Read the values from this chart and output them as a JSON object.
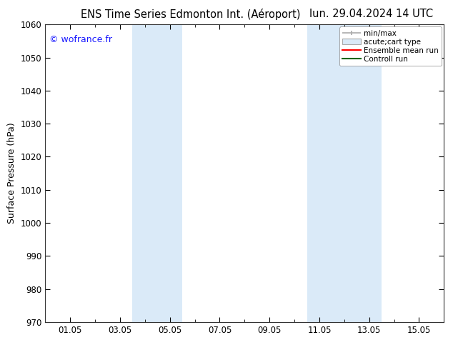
{
  "title_left": "ENS Time Series Edmonton Int. (Aéroport)",
  "title_right": "lun. 29.04.2024 14 UTC",
  "ylabel": "Surface Pressure (hPa)",
  "ylim": [
    970,
    1060
  ],
  "yticks": [
    970,
    980,
    990,
    1000,
    1010,
    1020,
    1030,
    1040,
    1050,
    1060
  ],
  "xtick_labels": [
    "01.05",
    "03.05",
    "05.05",
    "07.05",
    "09.05",
    "11.05",
    "13.05",
    "15.05"
  ],
  "xtick_positions": [
    1,
    3,
    5,
    7,
    9,
    11,
    13,
    15
  ],
  "xmin": 0,
  "xmax": 16,
  "blue_bands": [
    {
      "xmin": 3.5,
      "xmax": 5.5
    },
    {
      "xmin": 10.5,
      "xmax": 13.5
    }
  ],
  "band_color": "#daeaf8",
  "copyright_text": "© wofrance.fr",
  "copyright_color": "#1a1aff",
  "legend_entries": [
    "min/max",
    "acute;cart type",
    "Ensemble mean run",
    "Controll run"
  ],
  "legend_line_color": "#aaaaaa",
  "legend_box_color": "#daeaf8",
  "legend_red": "#ff0000",
  "legend_green": "#006600",
  "background_color": "#ffffff",
  "title_fontsize": 10.5,
  "ylabel_fontsize": 9,
  "tick_fontsize": 8.5,
  "copyright_fontsize": 9,
  "legend_fontsize": 7.5
}
